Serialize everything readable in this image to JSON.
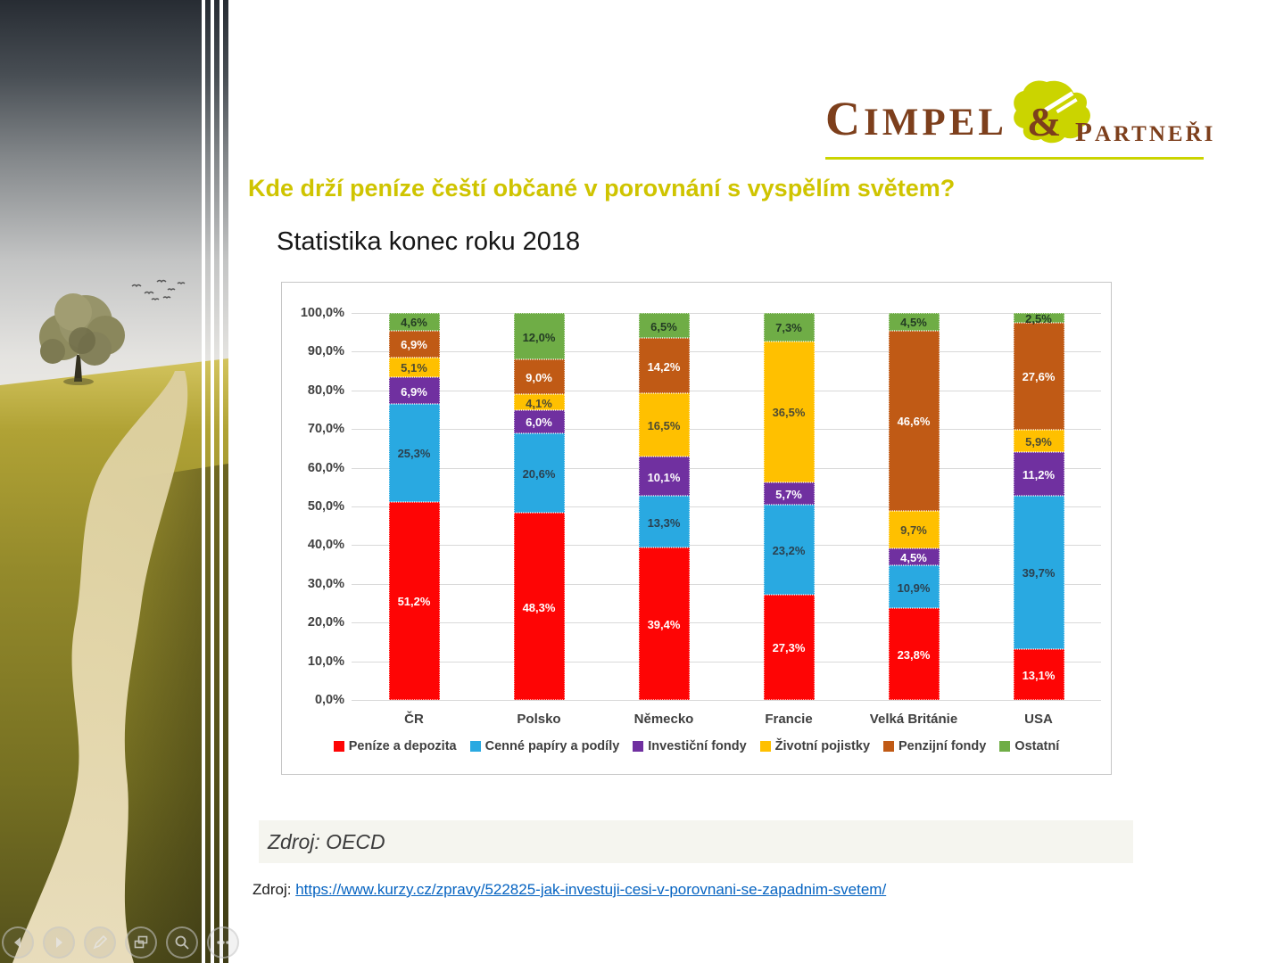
{
  "slide": {
    "title": "Kde drží peníze čeští občané v porovnání s vyspělím světem?",
    "subtitle": "Statistika konec roku 2018",
    "chart_source_note": "Zdroj: OECD",
    "source_label": "Zdroj:",
    "source_url": "https://www.kurzy.cz/zpravy/522825-jak-investuji-cesi-v-porovnani-se-zapadnim-svetem/",
    "accent_yellow": "#cfc400"
  },
  "logo": {
    "name_left": "CIMPEL",
    "ampersand": "&",
    "name_right": "PARTNEŘI",
    "brown": "#7d3f1c",
    "chartreuse": "#cbd400"
  },
  "presenter_controls": [
    {
      "name": "previous-slide"
    },
    {
      "name": "next-slide"
    },
    {
      "name": "pen-tools"
    },
    {
      "name": "see-all-slides"
    },
    {
      "name": "zoom-slide"
    },
    {
      "name": "more-options"
    }
  ],
  "chart_data": {
    "type": "bar",
    "stacked": true,
    "categories": [
      "ČR",
      "Polsko",
      "Německo",
      "Francie",
      "Velká Británie",
      "USA"
    ],
    "series": [
      {
        "name": "Peníze a depozita",
        "color": "#fe0505",
        "label_color": "#ffffff",
        "values": [
          51.2,
          48.3,
          39.4,
          27.3,
          23.8,
          13.1
        ]
      },
      {
        "name": "Cenné papíry a podíly",
        "color": "#29a9e1",
        "label_color": "#2b4150",
        "values": [
          25.3,
          20.6,
          13.3,
          23.2,
          10.9,
          39.7
        ]
      },
      {
        "name": "Investiční fondy",
        "color": "#7030a0",
        "label_color": "#ffffff",
        "values": [
          6.9,
          6.0,
          10.1,
          5.7,
          4.5,
          11.2
        ]
      },
      {
        "name": "Životní pojistky",
        "color": "#ffc000",
        "label_color": "#4d4b33",
        "values": [
          5.1,
          4.1,
          16.5,
          36.5,
          9.7,
          5.9
        ]
      },
      {
        "name": "Penzijní fondy",
        "color": "#c05a15",
        "label_color": "#ffffff",
        "values": [
          6.9,
          9.0,
          14.2,
          0.0,
          46.6,
          27.6
        ]
      },
      {
        "name": "Ostatní",
        "color": "#6fad46",
        "label_color": "#243c24",
        "values": [
          4.6,
          12.0,
          6.5,
          7.3,
          4.5,
          2.5
        ]
      }
    ],
    "y_ticks": [
      "0,0%",
      "10,0%",
      "20,0%",
      "30,0%",
      "40,0%",
      "50,0%",
      "60,0%",
      "70,0%",
      "80,0%",
      "90,0%",
      "100,0%"
    ],
    "ylim": [
      0,
      100
    ],
    "grid": true,
    "legend_position": "bottom",
    "value_label_decimal_separator": ","
  }
}
